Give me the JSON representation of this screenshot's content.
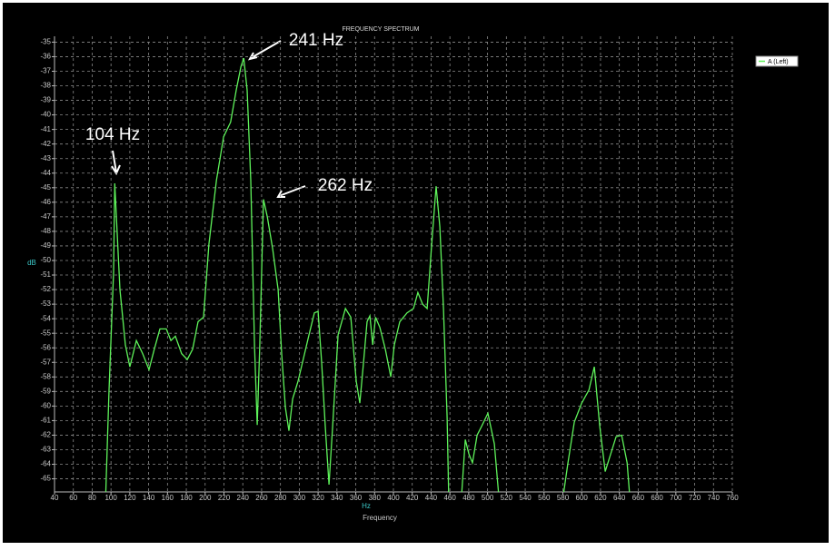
{
  "chart_data": {
    "type": "line",
    "title": "FREQUENCY SPECTRUM",
    "x_label": "Frequency",
    "x_unit": "Hz",
    "y_unit": "dB",
    "annotations": [
      "104 Hz",
      "241 Hz",
      "262 Hz"
    ],
    "legend": "top-right",
    "grid": true,
    "xlim": [
      40,
      760
    ],
    "ylim": [
      -65.9,
      -34.6
    ],
    "xticks": [
      40,
      60,
      80,
      100,
      120,
      140,
      160,
      180,
      200,
      220,
      240,
      260,
      280,
      300,
      320,
      340,
      360,
      380,
      400,
      420,
      440,
      460,
      480,
      500,
      520,
      540,
      560,
      580,
      600,
      620,
      640,
      660,
      680,
      700,
      720,
      740,
      760
    ],
    "yticks": [
      -35,
      -36,
      -37,
      -38,
      -39,
      -40,
      -41,
      -42,
      -43,
      -44,
      -45,
      -46,
      -47,
      -48,
      -49,
      -50,
      -51,
      -52,
      -53,
      -54,
      -55,
      -56,
      -57,
      -58,
      -59,
      -60,
      -61,
      -62,
      -63,
      -64,
      -65
    ],
    "x": [
      94,
      97.9,
      102.7,
      104,
      109.5,
      115.3,
      120,
      127,
      133.6,
      140.4,
      146,
      152,
      158.7,
      163.6,
      168.4,
      175,
      181,
      186.7,
      192.5,
      198.3,
      204,
      212,
      219.6,
      227,
      233,
      238,
      241,
      244.6,
      248.5,
      252.4,
      255.3,
      258,
      262,
      266,
      271.7,
      277.5,
      281.3,
      285.2,
      289,
      293,
      298.7,
      304.5,
      310.3,
      316,
      320,
      323.8,
      327.6,
      331.6,
      335.4,
      341.2,
      349,
      354.7,
      360.5,
      364.3,
      368.2,
      372,
      375,
      378,
      381,
      385.6,
      391.4,
      397.2,
      401,
      406.8,
      414.5,
      421.3,
      426,
      431,
      435.8,
      440.6,
      445.4,
      449.3,
      453.2,
      457,
      459,
      465,
      471.5,
      476.3,
      480.2,
      484,
      488.9,
      493.6,
      500.4,
      507.2,
      513,
      545,
      578.6,
      585.4,
      592.2,
      600,
      607.7,
      613.4,
      619.2,
      625,
      630.8,
      636.6,
      642.4,
      648.2,
      652
    ],
    "series": [
      {
        "name": "A (Left)",
        "color": "#5ef25a",
        "values": [
          -67,
          -58.9,
          -50.8,
          -44.7,
          -52,
          -55.8,
          -57.3,
          -55.5,
          -56.4,
          -57.5,
          -56.1,
          -54.7,
          -54.7,
          -55.5,
          -55.2,
          -56.4,
          -56.8,
          -56.1,
          -54.2,
          -53.9,
          -48.9,
          -44.5,
          -41.5,
          -40.5,
          -38.3,
          -36.7,
          -36.1,
          -38.3,
          -44.5,
          -55.8,
          -61.3,
          -55.8,
          -45.8,
          -47,
          -49.2,
          -52,
          -56.4,
          -60.1,
          -61.7,
          -59.5,
          -58.3,
          -56.7,
          -55.1,
          -53.6,
          -53.5,
          -57,
          -61.4,
          -65.4,
          -61.4,
          -55.1,
          -53.3,
          -53.9,
          -58.3,
          -59.8,
          -57,
          -54.2,
          -53.8,
          -55.8,
          -53.9,
          -54.6,
          -56.1,
          -58,
          -55.8,
          -54.2,
          -53.6,
          -53.3,
          -52.2,
          -53,
          -53.3,
          -48.9,
          -44.9,
          -47.7,
          -53.3,
          -60.8,
          -67,
          null,
          -67,
          -62.3,
          -63.3,
          -63.9,
          -62,
          -61.4,
          -60.5,
          -62.6,
          -67,
          null,
          -67,
          -63.9,
          -61.1,
          -59.8,
          -58.9,
          -57.3,
          -61.4,
          -64.5,
          -63.3,
          -62.1,
          -62,
          -63.9,
          -67
        ]
      }
    ]
  }
}
